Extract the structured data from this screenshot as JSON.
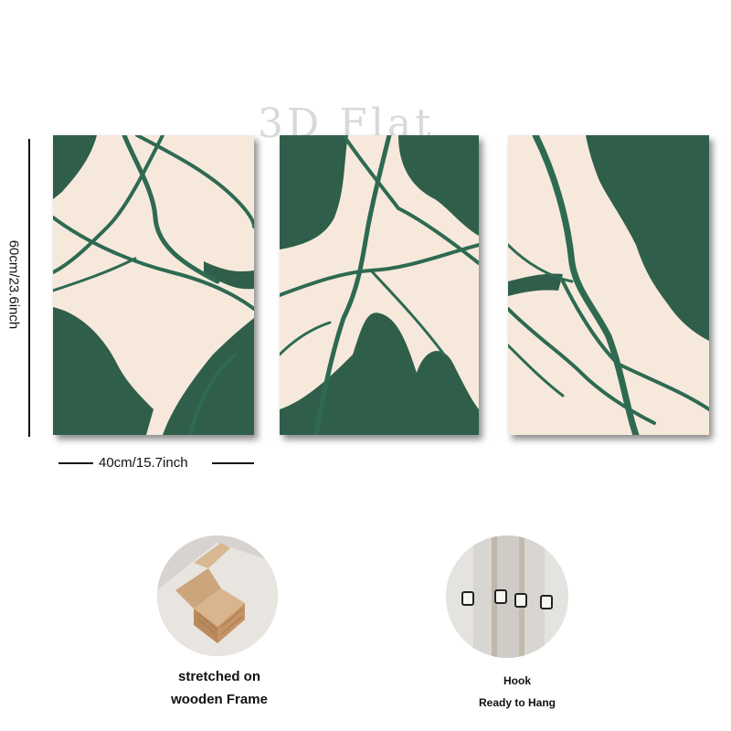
{
  "watermark": "3D Flat",
  "dimensions": {
    "height_label": "60cm/23.6inch",
    "width_label": "40cm/15.7inch"
  },
  "colors": {
    "green": "#2f5f4a",
    "green_dark": "#244a3a",
    "cream": "#f6e9dc",
    "line": "#2e6a52"
  },
  "features": [
    {
      "caption_line1": "stretched on",
      "caption_line2": "wooden Frame",
      "icon": "wooden-frame-photo"
    },
    {
      "caption_line1": "Hook",
      "caption_line2": "Ready to Hang",
      "icon": "hook-photo"
    }
  ]
}
